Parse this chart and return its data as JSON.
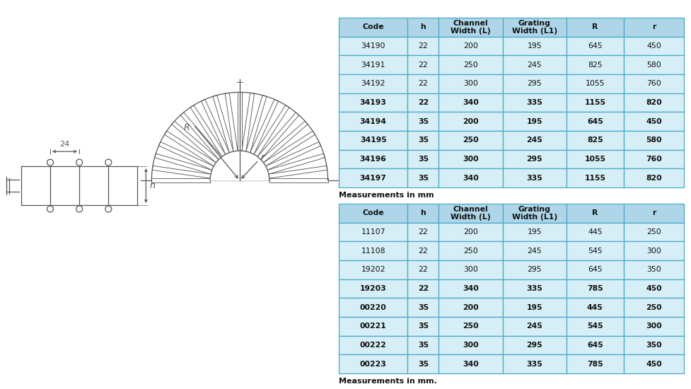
{
  "bg_color": "#ffffff",
  "table1_header": [
    "Code",
    "h",
    "Channel\nWidth (L)",
    "Grating\nWidth (L1)",
    "R",
    "r"
  ],
  "table1_rows": [
    [
      "34190",
      "22",
      "200",
      "195",
      "645",
      "450"
    ],
    [
      "34191",
      "22",
      "250",
      "245",
      "825",
      "580"
    ],
    [
      "34192",
      "22",
      "300",
      "295",
      "1055",
      "760"
    ],
    [
      "34193",
      "22",
      "340",
      "335",
      "1155",
      "820"
    ],
    [
      "34194",
      "35",
      "200",
      "195",
      "645",
      "450"
    ],
    [
      "34195",
      "35",
      "250",
      "245",
      "825",
      "580"
    ],
    [
      "34196",
      "35",
      "300",
      "295",
      "1055",
      "760"
    ],
    [
      "34197",
      "35",
      "340",
      "335",
      "1155",
      "820"
    ]
  ],
  "table1_note": "Measurements in mm",
  "table2_header": [
    "Code",
    "h",
    "Channel\nWidth (L)",
    "Grating\nWidth (L1)",
    "R",
    "r"
  ],
  "table2_rows": [
    [
      "11107",
      "22",
      "200",
      "195",
      "445",
      "250"
    ],
    [
      "11108",
      "22",
      "250",
      "245",
      "545",
      "300"
    ],
    [
      "19202",
      "22",
      "300",
      "295",
      "645",
      "350"
    ],
    [
      "19203",
      "22",
      "340",
      "335",
      "785",
      "450"
    ],
    [
      "00220",
      "35",
      "200",
      "195",
      "445",
      "250"
    ],
    [
      "00221",
      "35",
      "250",
      "245",
      "545",
      "300"
    ],
    [
      "00222",
      "35",
      "300",
      "295",
      "645",
      "350"
    ],
    [
      "00223",
      "35",
      "340",
      "335",
      "785",
      "450"
    ]
  ],
  "table2_note": "Measurements in mm.",
  "header_bg": "#aed6e8",
  "row_bg": "#d6eef5",
  "border_color": "#4aa8cc",
  "text_color": "#1a1a1a",
  "bold_codes_t1": [
    "34193",
    "34194",
    "34195",
    "34196",
    "34197"
  ],
  "bold_codes_t2": [
    "19203",
    "00220",
    "00221",
    "00222",
    "00223"
  ],
  "col_props": [
    0.2,
    0.09,
    0.185,
    0.185,
    0.165,
    0.175
  ],
  "lc": "#555555",
  "lw": 0.9
}
